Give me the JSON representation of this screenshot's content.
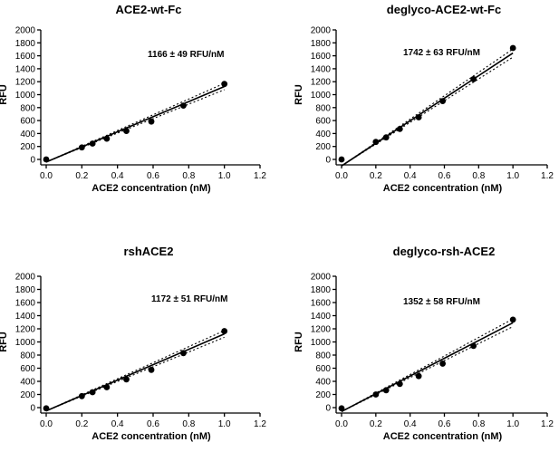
{
  "chart_data": [
    {
      "type": "scatter",
      "title": "ACE2-wt-Fc",
      "annotation": "1166 ± 49 RFU/nM",
      "xlabel": "ACE2 concentration (nM)",
      "ylabel": "RFU",
      "xlim": [
        0,
        1.2
      ],
      "ylim": [
        0,
        2000
      ],
      "xticks": [
        0.0,
        0.2,
        0.4,
        0.6,
        0.8,
        1.0,
        1.2
      ],
      "xtick_labels": [
        "0.0",
        "0.2",
        "0.4",
        "0.6",
        "0.8",
        "1.0",
        "1.2"
      ],
      "yticks": [
        0,
        200,
        400,
        600,
        800,
        1000,
        1200,
        1400,
        1600,
        1800,
        2000
      ],
      "ytick_labels": [
        "0",
        "200",
        "400",
        "600",
        "800",
        "1000",
        "1200",
        "1400",
        "1600",
        "1800",
        "2000"
      ],
      "x": [
        0,
        0.2,
        0.26,
        0.34,
        0.45,
        0.59,
        0.77,
        1.0
      ],
      "y": [
        0,
        185,
        245,
        320,
        440,
        585,
        830,
        1165
      ],
      "fit": {
        "slope": 1166,
        "intercept": -40
      },
      "band_lower": {
        "slope": 1117,
        "intercept": -40
      },
      "band_upper": {
        "slope": 1215,
        "intercept": -40
      }
    },
    {
      "type": "scatter",
      "title": "deglyco-ACE2-wt-Fc",
      "annotation": "1742 ± 63 RFU/nM",
      "xlabel": "ACE2 concentration (nM)",
      "ylabel": "RFU",
      "xlim": [
        0,
        1.2
      ],
      "ylim": [
        0,
        2000
      ],
      "xticks": [
        0.0,
        0.2,
        0.4,
        0.6,
        0.8,
        1.0,
        1.2
      ],
      "xtick_labels": [
        "0.0",
        "0.2",
        "0.4",
        "0.6",
        "0.8",
        "1.0",
        "1.2"
      ],
      "yticks": [
        0,
        200,
        400,
        600,
        800,
        1000,
        1200,
        1400,
        1600,
        1800,
        2000
      ],
      "ytick_labels": [
        "0",
        "200",
        "400",
        "600",
        "800",
        "1000",
        "1200",
        "1400",
        "1600",
        "1800",
        "2000"
      ],
      "x": [
        0,
        0.2,
        0.26,
        0.34,
        0.45,
        0.59,
        0.77,
        1.0
      ],
      "y": [
        0,
        270,
        340,
        470,
        650,
        900,
        1240,
        1720
      ],
      "fit": {
        "slope": 1742,
        "intercept": -100
      },
      "band_lower": {
        "slope": 1679,
        "intercept": -100
      },
      "band_upper": {
        "slope": 1805,
        "intercept": -100
      }
    },
    {
      "type": "scatter",
      "title": "rshACE2",
      "annotation": "1172 ± 51 RFU/nM",
      "xlabel": "ACE2 concentration (nM)",
      "ylabel": "RFU",
      "xlim": [
        0,
        1.2
      ],
      "ylim": [
        0,
        2000
      ],
      "xticks": [
        0.0,
        0.2,
        0.4,
        0.6,
        0.8,
        1.0,
        1.2
      ],
      "xtick_labels": [
        "0.0",
        "0.2",
        "0.4",
        "0.6",
        "0.8",
        "1.0",
        "1.2"
      ],
      "yticks": [
        0,
        200,
        400,
        600,
        800,
        1000,
        1200,
        1400,
        1600,
        1800,
        2000
      ],
      "ytick_labels": [
        "0",
        "200",
        "400",
        "600",
        "800",
        "1000",
        "1200",
        "1400",
        "1600",
        "1800",
        "2000"
      ],
      "x": [
        0,
        0.2,
        0.26,
        0.34,
        0.45,
        0.59,
        0.77,
        1.0
      ],
      "y": [
        -10,
        175,
        235,
        310,
        430,
        575,
        830,
        1165
      ],
      "fit": {
        "slope": 1172,
        "intercept": -50
      },
      "band_lower": {
        "slope": 1121,
        "intercept": -50
      },
      "band_upper": {
        "slope": 1223,
        "intercept": -50
      }
    },
    {
      "type": "scatter",
      "title": "deglyco-rsh-ACE2",
      "annotation": "1352 ± 58 RFU/nM",
      "xlabel": "ACE2 concentration (nM)",
      "ylabel": "RFU",
      "xlim": [
        0,
        1.2
      ],
      "ylim": [
        0,
        2000
      ],
      "xticks": [
        0.0,
        0.2,
        0.4,
        0.6,
        0.8,
        1.0,
        1.2
      ],
      "xtick_labels": [
        "0.0",
        "0.2",
        "0.4",
        "0.6",
        "0.8",
        "1.0",
        "1.2"
      ],
      "yticks": [
        0,
        200,
        400,
        600,
        800,
        1000,
        1200,
        1400,
        1600,
        1800,
        2000
      ],
      "ytick_labels": [
        "0",
        "200",
        "400",
        "600",
        "800",
        "1000",
        "1200",
        "1400",
        "1600",
        "1800",
        "2000"
      ],
      "x": [
        0,
        0.2,
        0.26,
        0.34,
        0.45,
        0.59,
        0.77,
        1.0
      ],
      "y": [
        -10,
        200,
        265,
        360,
        480,
        670,
        940,
        1340
      ],
      "fit": {
        "slope": 1352,
        "intercept": -60
      },
      "band_lower": {
        "slope": 1294,
        "intercept": -60
      },
      "band_upper": {
        "slope": 1410,
        "intercept": -60
      }
    }
  ]
}
